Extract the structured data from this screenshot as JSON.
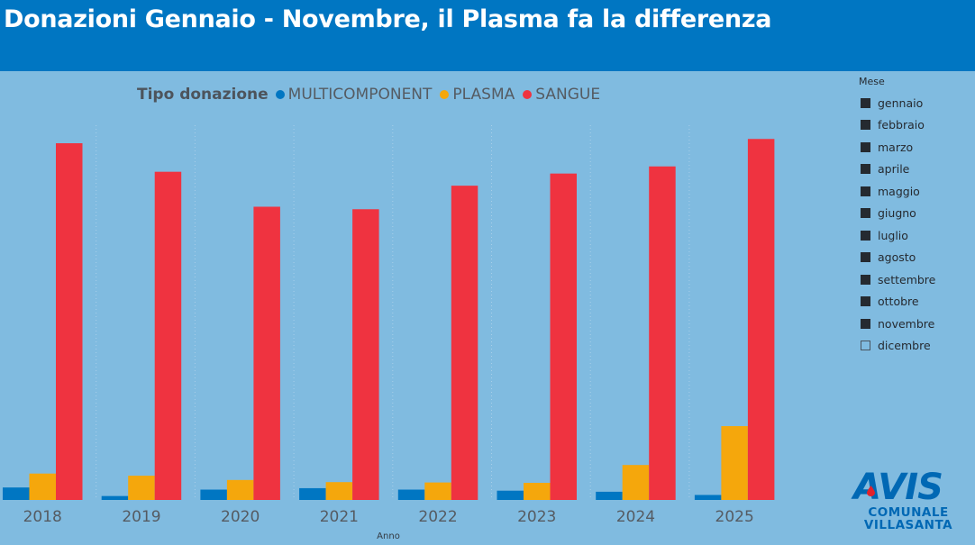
{
  "header": {
    "title": "Donazioni Gennaio - Novembre, il Plasma fa la differenza"
  },
  "chart_data": {
    "type": "bar",
    "legend_title": "Tipo donazione",
    "categories": [
      "2018",
      "2019",
      "2020",
      "2021",
      "2022",
      "2023",
      "2024",
      "2025"
    ],
    "xlabel": "Anno",
    "ylabel": "",
    "ylim": [
      0,
      1000
    ],
    "series": [
      {
        "name": "MULTICOMPONENT",
        "color": "#0076c2",
        "values": [
          35,
          11,
          29,
          33,
          29,
          26,
          23,
          14
        ]
      },
      {
        "name": "PLASMA",
        "color": "#f5a70c",
        "values": [
          74,
          68,
          56,
          50,
          49,
          48,
          98,
          207
        ]
      },
      {
        "name": "SANGUE",
        "color": "#ef3340",
        "values": [
          1000,
          920,
          822,
          815,
          881,
          915,
          935,
          1012
        ]
      }
    ]
  },
  "slicer": {
    "title": "Mese",
    "items": [
      {
        "label": "gennaio",
        "checked": true
      },
      {
        "label": "febbraio",
        "checked": true
      },
      {
        "label": "marzo",
        "checked": true
      },
      {
        "label": "aprile",
        "checked": true
      },
      {
        "label": "maggio",
        "checked": true
      },
      {
        "label": "giugno",
        "checked": true
      },
      {
        "label": "luglio",
        "checked": true
      },
      {
        "label": "agosto",
        "checked": true
      },
      {
        "label": "settembre",
        "checked": true
      },
      {
        "label": "ottobre",
        "checked": true
      },
      {
        "label": "novembre",
        "checked": true
      },
      {
        "label": "dicembre",
        "checked": false
      }
    ]
  },
  "logo": {
    "word": "AVIS",
    "line1": "COMUNALE",
    "line2": "VILLASANTA"
  }
}
